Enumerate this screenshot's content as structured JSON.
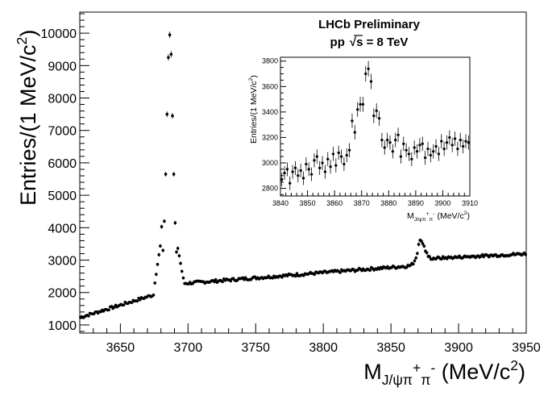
{
  "chart_data": [
    {
      "type": "scatter",
      "xlabel_parts": {
        "base": "M",
        "subscript": "J/ψπ",
        "sup1": "+",
        "mid": "π",
        "sup2": "-",
        "unit_open": " (MeV/c",
        "unit_sup": "2",
        "unit_close": ")"
      },
      "ylabel_parts": {
        "text": "Entries/(1 MeV/c",
        "sup": "2",
        "close": ")"
      },
      "xlim": [
        3620,
        3950
      ],
      "ylim": [
        750,
        10650
      ],
      "x_ticks": [
        3650,
        3700,
        3750,
        3800,
        3850,
        3900,
        3950
      ],
      "y_ticks": [
        1000,
        2000,
        3000,
        4000,
        5000,
        6000,
        7000,
        8000,
        9000,
        10000
      ],
      "x_tick_labels": [
        "3650",
        "3700",
        "3750",
        "3800",
        "3850",
        "3900",
        "3950"
      ],
      "y_tick_labels": [
        "1000",
        "2000",
        "3000",
        "4000",
        "5000",
        "6000",
        "7000",
        "8000",
        "9000",
        "10000"
      ],
      "grid": false,
      "peak_points": [
        {
          "x": 3681.5,
          "y": 3300
        },
        {
          "x": 3682.5,
          "y": 4200
        },
        {
          "x": 3683.5,
          "y": 5650
        },
        {
          "x": 3684.5,
          "y": 7500
        },
        {
          "x": 3685.5,
          "y": 9250
        },
        {
          "x": 3686.5,
          "y": 9950
        },
        {
          "x": 3687.5,
          "y": 9350
        },
        {
          "x": 3688.5,
          "y": 7450
        },
        {
          "x": 3689.5,
          "y": 5650
        },
        {
          "x": 3690.5,
          "y": 4150
        },
        {
          "x": 3691.5,
          "y": 3250
        }
      ]
    },
    {
      "type": "scatter",
      "title_line1": "LHCb Preliminary",
      "title_line2_parts": {
        "pp": "pp",
        "root": "√",
        "s": "s",
        "rest": " = 8 TeV"
      },
      "xlabel_parts": {
        "base": "M",
        "subscript": "J/ψπ",
        "sup1": "+",
        "mid": "π",
        "sup2": "-",
        "unit_open": " (MeV/c",
        "unit_sup": "2",
        "unit_close": ")"
      },
      "ylabel_parts": {
        "text": "Entries/(1 MeV/c",
        "sup": "2",
        "close": ")"
      },
      "xlim": [
        3840,
        3910
      ],
      "ylim": [
        2740,
        3830
      ],
      "x_ticks": [
        3840,
        3850,
        3860,
        3870,
        3880,
        3890,
        3900,
        3910
      ],
      "y_ticks": [
        2800,
        3000,
        3200,
        3400,
        3600,
        3800
      ],
      "x_tick_labels": [
        "3840",
        "3850",
        "3860",
        "3870",
        "3880",
        "3890",
        "3900",
        "3910"
      ],
      "y_tick_labels": [
        "2800",
        "3000",
        "3200",
        "3400",
        "3600",
        "3800"
      ],
      "grid": false,
      "points": [
        {
          "x": 3840.5,
          "y": 2870
        },
        {
          "x": 3841.5,
          "y": 2920
        },
        {
          "x": 3842.5,
          "y": 2950
        },
        {
          "x": 3843.5,
          "y": 2840
        },
        {
          "x": 3844.5,
          "y": 2930
        },
        {
          "x": 3845.5,
          "y": 2960
        },
        {
          "x": 3846.5,
          "y": 2900
        },
        {
          "x": 3847.5,
          "y": 2940
        },
        {
          "x": 3848.5,
          "y": 2880
        },
        {
          "x": 3849.5,
          "y": 2990
        },
        {
          "x": 3850.5,
          "y": 2950
        },
        {
          "x": 3851.5,
          "y": 2910
        },
        {
          "x": 3852.5,
          "y": 3020
        },
        {
          "x": 3853.5,
          "y": 3050
        },
        {
          "x": 3854.5,
          "y": 2960
        },
        {
          "x": 3855.5,
          "y": 3000
        },
        {
          "x": 3856.5,
          "y": 2930
        },
        {
          "x": 3857.5,
          "y": 3030
        },
        {
          "x": 3858.5,
          "y": 2970
        },
        {
          "x": 3859.5,
          "y": 3070
        },
        {
          "x": 3860.5,
          "y": 2980
        },
        {
          "x": 3861.5,
          "y": 3080
        },
        {
          "x": 3862.5,
          "y": 3050
        },
        {
          "x": 3863.5,
          "y": 2990
        },
        {
          "x": 3864.5,
          "y": 3060
        },
        {
          "x": 3865.5,
          "y": 3100
        },
        {
          "x": 3866.5,
          "y": 3330
        },
        {
          "x": 3867.5,
          "y": 3240
        },
        {
          "x": 3868.5,
          "y": 3420
        },
        {
          "x": 3869.5,
          "y": 3460
        },
        {
          "x": 3870.5,
          "y": 3460
        },
        {
          "x": 3871.5,
          "y": 3700
        },
        {
          "x": 3872.5,
          "y": 3740
        },
        {
          "x": 3873.5,
          "y": 3640
        },
        {
          "x": 3874.5,
          "y": 3370
        },
        {
          "x": 3875.5,
          "y": 3410
        },
        {
          "x": 3876.5,
          "y": 3350
        },
        {
          "x": 3877.5,
          "y": 3180
        },
        {
          "x": 3878.5,
          "y": 3120
        },
        {
          "x": 3879.5,
          "y": 3180
        },
        {
          "x": 3880.5,
          "y": 3160
        },
        {
          "x": 3881.5,
          "y": 3090
        },
        {
          "x": 3882.5,
          "y": 3180
        },
        {
          "x": 3883.5,
          "y": 3220
        },
        {
          "x": 3884.5,
          "y": 3050
        },
        {
          "x": 3885.5,
          "y": 3150
        },
        {
          "x": 3886.5,
          "y": 3100
        },
        {
          "x": 3887.5,
          "y": 3070
        },
        {
          "x": 3888.5,
          "y": 3030
        },
        {
          "x": 3889.5,
          "y": 3120
        },
        {
          "x": 3890.5,
          "y": 3090
        },
        {
          "x": 3891.5,
          "y": 3140
        },
        {
          "x": 3892.5,
          "y": 3150
        },
        {
          "x": 3893.5,
          "y": 3040
        },
        {
          "x": 3894.5,
          "y": 3110
        },
        {
          "x": 3895.5,
          "y": 3060
        },
        {
          "x": 3896.5,
          "y": 3090
        },
        {
          "x": 3897.5,
          "y": 3130
        },
        {
          "x": 3898.5,
          "y": 3070
        },
        {
          "x": 3899.5,
          "y": 3170
        },
        {
          "x": 3900.5,
          "y": 3110
        },
        {
          "x": 3901.5,
          "y": 3160
        },
        {
          "x": 3902.5,
          "y": 3200
        },
        {
          "x": 3903.5,
          "y": 3140
        },
        {
          "x": 3904.5,
          "y": 3190
        },
        {
          "x": 3905.5,
          "y": 3110
        },
        {
          "x": 3906.5,
          "y": 3180
        },
        {
          "x": 3907.5,
          "y": 3130
        },
        {
          "x": 3908.5,
          "y": 3170
        },
        {
          "x": 3909.5,
          "y": 3160
        }
      ]
    }
  ]
}
